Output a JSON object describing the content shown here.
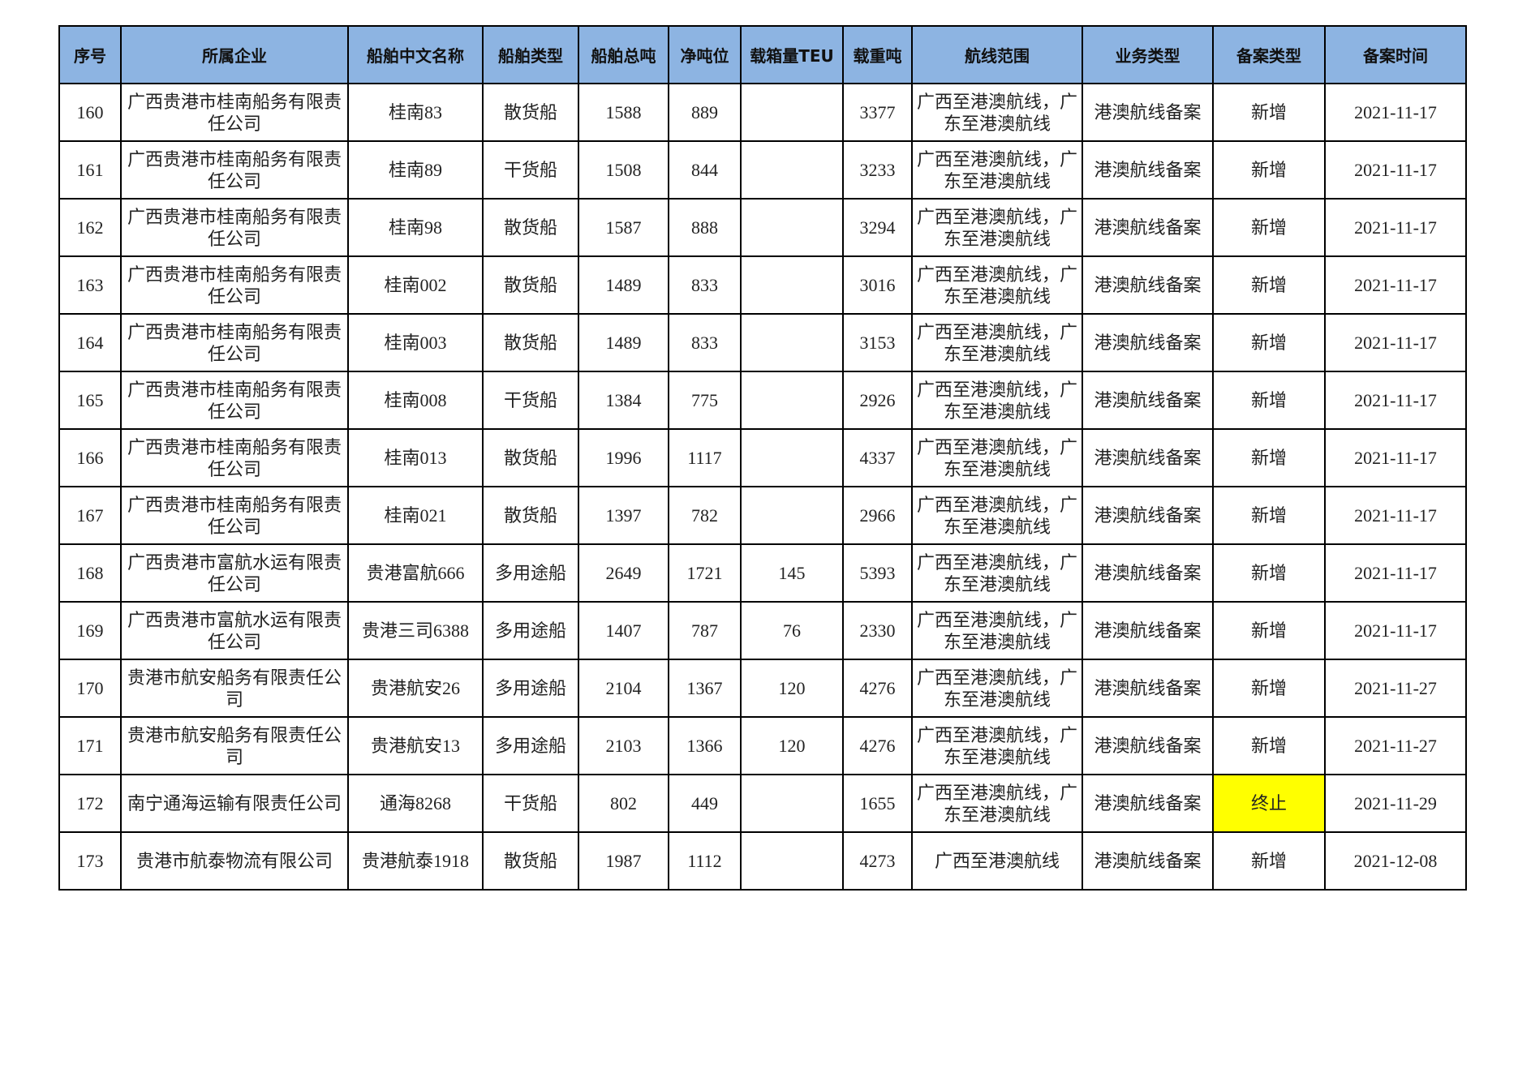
{
  "table": {
    "headers": [
      "序号",
      "所属企业",
      "船舶中文名称",
      "船舶类型",
      "船舶总吨",
      "净吨位",
      "载箱量TEU",
      "载重吨",
      "航线范围",
      "业务类型",
      "备案类型",
      "备案时间"
    ],
    "highlight_color": "#ffff00",
    "header_color": "#8db4e2",
    "rows": [
      [
        "160",
        "广西贵港市桂南船务有限责任公司",
        "桂南83",
        "散货船",
        "1588",
        "889",
        "",
        "3377",
        "广西至港澳航线，广东至港澳航线",
        "港澳航线备案",
        "新增",
        "2021-11-17"
      ],
      [
        "161",
        "广西贵港市桂南船务有限责任公司",
        "桂南89",
        "干货船",
        "1508",
        "844",
        "",
        "3233",
        "广西至港澳航线，广东至港澳航线",
        "港澳航线备案",
        "新增",
        "2021-11-17"
      ],
      [
        "162",
        "广西贵港市桂南船务有限责任公司",
        "桂南98",
        "散货船",
        "1587",
        "888",
        "",
        "3294",
        "广西至港澳航线，广东至港澳航线",
        "港澳航线备案",
        "新增",
        "2021-11-17"
      ],
      [
        "163",
        "广西贵港市桂南船务有限责任公司",
        "桂南002",
        "散货船",
        "1489",
        "833",
        "",
        "3016",
        "广西至港澳航线，广东至港澳航线",
        "港澳航线备案",
        "新增",
        "2021-11-17"
      ],
      [
        "164",
        "广西贵港市桂南船务有限责任公司",
        "桂南003",
        "散货船",
        "1489",
        "833",
        "",
        "3153",
        "广西至港澳航线，广东至港澳航线",
        "港澳航线备案",
        "新增",
        "2021-11-17"
      ],
      [
        "165",
        "广西贵港市桂南船务有限责任公司",
        "桂南008",
        "干货船",
        "1384",
        "775",
        "",
        "2926",
        "广西至港澳航线，广东至港澳航线",
        "港澳航线备案",
        "新增",
        "2021-11-17"
      ],
      [
        "166",
        "广西贵港市桂南船务有限责任公司",
        "桂南013",
        "散货船",
        "1996",
        "1117",
        "",
        "4337",
        "广西至港澳航线，广东至港澳航线",
        "港澳航线备案",
        "新增",
        "2021-11-17"
      ],
      [
        "167",
        "广西贵港市桂南船务有限责任公司",
        "桂南021",
        "散货船",
        "1397",
        "782",
        "",
        "2966",
        "广西至港澳航线，广东至港澳航线",
        "港澳航线备案",
        "新增",
        "2021-11-17"
      ],
      [
        "168",
        "广西贵港市富航水运有限责任公司",
        "贵港富航666",
        "多用途船",
        "2649",
        "1721",
        "145",
        "5393",
        "广西至港澳航线，广东至港澳航线",
        "港澳航线备案",
        "新增",
        "2021-11-17"
      ],
      [
        "169",
        "广西贵港市富航水运有限责任公司",
        "贵港三司6388",
        "多用途船",
        "1407",
        "787",
        "76",
        "2330",
        "广西至港澳航线，广东至港澳航线",
        "港澳航线备案",
        "新增",
        "2021-11-17"
      ],
      [
        "170",
        "贵港市航安船务有限责任公司",
        "贵港航安26",
        "多用途船",
        "2104",
        "1367",
        "120",
        "4276",
        "广西至港澳航线，广东至港澳航线",
        "港澳航线备案",
        "新增",
        "2021-11-27"
      ],
      [
        "171",
        "贵港市航安船务有限责任公司",
        "贵港航安13",
        "多用途船",
        "2103",
        "1366",
        "120",
        "4276",
        "广西至港澳航线，广东至港澳航线",
        "港澳航线备案",
        "新增",
        "2021-11-27"
      ],
      [
        "172",
        "南宁通海运输有限责任公司",
        "通海8268",
        "干货船",
        "802",
        "449",
        "",
        "1655",
        "广西至港澳航线，广东至港澳航线",
        "港澳航线备案",
        "终止",
        "2021-11-29"
      ],
      [
        "173",
        "贵港市航泰物流有限公司",
        "贵港航泰1918",
        "散货船",
        "1987",
        "1112",
        "",
        "4273",
        "广西至港澳航线",
        "港澳航线备案",
        "新增",
        "2021-12-08"
      ]
    ]
  }
}
